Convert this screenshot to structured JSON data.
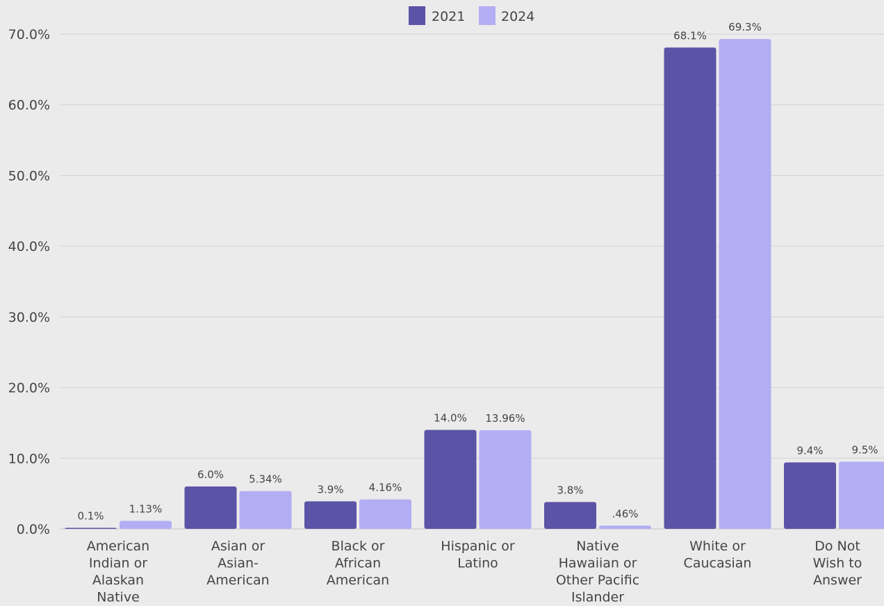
{
  "chart_data": {
    "type": "bar",
    "title": "",
    "xlabel": "",
    "ylabel": "",
    "ylim": [
      0,
      70
    ],
    "yticks": [
      0,
      10,
      20,
      30,
      40,
      50,
      60,
      70
    ],
    "ytick_labels": [
      "0.0%",
      "10.0%",
      "20.0%",
      "30.0%",
      "40.0%",
      "50.0%",
      "60.0%",
      "70.0%"
    ],
    "grid": true,
    "legend": "top-center",
    "categories": [
      [
        "American",
        "Indian or",
        "Alaskan",
        "Native"
      ],
      [
        "Asian or",
        "Asian-",
        "American"
      ],
      [
        "Black or",
        "African",
        "American"
      ],
      [
        "Hispanic or",
        "Latino"
      ],
      [
        "Native",
        "Hawaiian or",
        "Other Pacific",
        "Islander"
      ],
      [
        "White or",
        "Caucasian"
      ],
      [
        "Do Not",
        "Wish to",
        "Answer"
      ]
    ],
    "series": [
      {
        "name": "2021",
        "color": "#5b53a6",
        "values": [
          0.1,
          6.0,
          3.9,
          14.0,
          3.8,
          68.1,
          9.4
        ],
        "labels": [
          "0.1%",
          "6.0%",
          "3.9%",
          "14.0%",
          "3.8%",
          "68.1%",
          "9.4%"
        ]
      },
      {
        "name": "2024",
        "color": "#b3aef3",
        "values": [
          1.13,
          5.34,
          4.16,
          13.96,
          0.46,
          69.3,
          9.5
        ],
        "labels": [
          "1.13%",
          "5.34%",
          "4.16%",
          "13.96%",
          ".46%",
          "69.3%",
          "9.5%"
        ]
      }
    ]
  }
}
